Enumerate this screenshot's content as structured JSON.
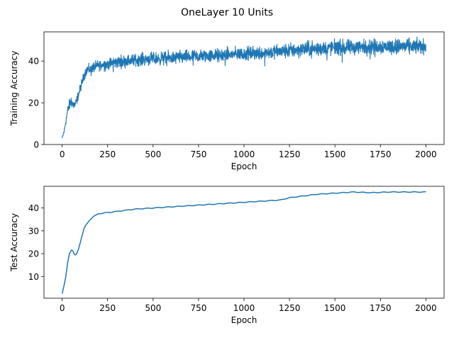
{
  "figure": {
    "title": "OneLayer 10 Units",
    "background": "#ffffff",
    "line_color": "#1f77b4"
  },
  "chart_data": [
    {
      "type": "line",
      "title": "",
      "xlabel": "Epoch",
      "ylabel": "Training Accuracy",
      "xlim": [
        -100,
        2100
      ],
      "ylim": [
        0,
        54
      ],
      "xticks": [
        0,
        250,
        500,
        750,
        1000,
        1250,
        1500,
        1750,
        2000
      ],
      "yticks": [
        0,
        20,
        40
      ],
      "grid": false,
      "legend": "none",
      "series": [
        {
          "name": "",
          "color": "#1f77b4",
          "noisy": true,
          "x": [
            0,
            10,
            20,
            30,
            40,
            50,
            60,
            70,
            80,
            90,
            100,
            110,
            120,
            130,
            140,
            150,
            175,
            200,
            250,
            300,
            350,
            400,
            450,
            500,
            600,
            700,
            800,
            900,
            1000,
            1100,
            1200,
            1250,
            1300,
            1400,
            1500,
            1600,
            1700,
            1800,
            1900,
            2000
          ],
          "y": [
            3,
            6,
            11,
            16,
            19,
            21,
            19,
            19,
            21,
            24,
            27,
            30,
            33,
            35,
            36,
            36,
            37,
            38,
            38.5,
            39.5,
            40,
            40.5,
            41,
            41,
            41.5,
            42,
            42.5,
            43,
            43.5,
            44,
            44.5,
            45,
            45.5,
            46,
            46.5,
            46.5,
            47,
            47,
            47,
            47
          ],
          "amp": [
            0.5,
            0.8,
            1.2,
            1.5,
            2.0,
            2.0,
            1.8,
            1.5,
            1.5,
            1.5,
            1.5,
            1.5,
            1.5,
            1.6,
            1.6,
            1.6,
            1.7,
            1.8,
            2.0,
            2.0,
            2.0,
            2.0,
            2.1,
            2.1,
            2.2,
            2.2,
            2.2,
            2.2,
            2.2,
            2.3,
            2.4,
            2.5,
            2.5,
            2.5,
            2.5,
            2.5,
            2.5,
            2.5,
            2.5,
            2.5
          ]
        }
      ]
    },
    {
      "type": "line",
      "title": "",
      "xlabel": "Epoch",
      "ylabel": "Test Accuracy",
      "xlim": [
        -100,
        2100
      ],
      "ylim": [
        0.5,
        49.5
      ],
      "xticks": [
        0,
        250,
        500,
        750,
        1000,
        1250,
        1500,
        1750,
        2000
      ],
      "yticks": [
        10,
        20,
        30,
        40
      ],
      "grid": false,
      "legend": "none",
      "series": [
        {
          "name": "",
          "color": "#1f77b4",
          "noisy": false,
          "x": [
            0,
            10,
            20,
            30,
            40,
            50,
            55,
            60,
            65,
            70,
            75,
            80,
            90,
            100,
            110,
            120,
            130,
            150,
            175,
            200,
            250,
            300,
            350,
            400,
            500,
            600,
            700,
            800,
            900,
            1000,
            1100,
            1200,
            1250,
            1300,
            1400,
            1500,
            1600,
            1700,
            1800,
            1900,
            2000
          ],
          "y": [
            2.5,
            6,
            10,
            16,
            20,
            21.5,
            21.5,
            21,
            20,
            19.5,
            19.5,
            20,
            22,
            25,
            28,
            31,
            32.5,
            34.5,
            36.5,
            37.5,
            38,
            38.5,
            39,
            39.5,
            40,
            40.5,
            41,
            41.5,
            42,
            42.5,
            43,
            43.5,
            44.5,
            45,
            46,
            46.5,
            47,
            46.7,
            47,
            47,
            47
          ]
        }
      ]
    }
  ]
}
